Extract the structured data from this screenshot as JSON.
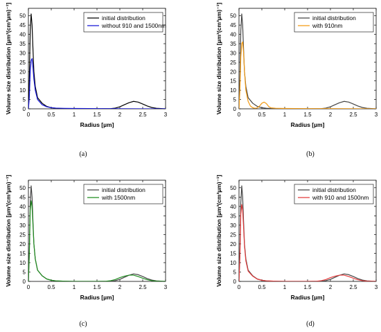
{
  "chart_data": [
    {
      "type": "line",
      "caption": "(a)",
      "xlabel": "Radius [µm]",
      "ylabel": "Volume size distribution [µm³(cm³µm)⁻¹]",
      "xlim": [
        0,
        3
      ],
      "ylim": [
        0,
        54
      ],
      "xticks": [
        "0",
        "0.5",
        "1",
        "1.5",
        "2",
        "2.5",
        "3"
      ],
      "yticks": [
        "0",
        "5",
        "10",
        "15",
        "20",
        "25",
        "30",
        "35",
        "40",
        "45",
        "50"
      ],
      "legend_position": "top-right",
      "grid": false,
      "series": [
        {
          "name": "initial distribution",
          "color": "#000000",
          "x": [
            0,
            0.02,
            0.04,
            0.06,
            0.08,
            0.1,
            0.12,
            0.15,
            0.2,
            0.3,
            0.4,
            0.5,
            0.6,
            0.7,
            0.8,
            1.0,
            1.5,
            1.8,
            1.9,
            2.0,
            2.1,
            2.2,
            2.3,
            2.4,
            2.5,
            2.6,
            2.7,
            2.8,
            3.0
          ],
          "y": [
            0,
            16,
            42,
            51,
            45,
            32,
            20,
            12,
            6,
            3,
            1.3,
            0.6,
            0.3,
            0.2,
            0.1,
            0,
            0,
            0.1,
            0.4,
            1.1,
            2.2,
            3.3,
            4.0,
            3.6,
            2.6,
            1.5,
            0.7,
            0.3,
            0
          ]
        },
        {
          "name": "without 910 and 1500nm",
          "color": "#1515d8",
          "x": [
            0,
            0.02,
            0.04,
            0.06,
            0.08,
            0.1,
            0.12,
            0.15,
            0.2,
            0.3,
            0.4,
            0.5,
            0.6,
            0.7,
            0.8,
            1.0,
            1.5,
            2.0,
            2.5,
            3.0
          ],
          "y": [
            0,
            6,
            20,
            26,
            27,
            22,
            16,
            10,
            5,
            2.2,
            1.1,
            0.6,
            0.4,
            0.3,
            0.25,
            0.2,
            0.1,
            0.05,
            0.02,
            0
          ]
        }
      ]
    },
    {
      "type": "line",
      "caption": "(b)",
      "xlabel": "Radius [µm]",
      "ylabel": "Volume size distribution [µm³(cm³µm)⁻¹]",
      "xlim": [
        0,
        3
      ],
      "ylim": [
        0,
        54
      ],
      "xticks": [
        "0",
        "0.5",
        "1",
        "1.5",
        "2",
        "2.5",
        "3"
      ],
      "yticks": [
        "0",
        "5",
        "10",
        "15",
        "20",
        "25",
        "30",
        "35",
        "40",
        "45",
        "50"
      ],
      "legend_position": "top-right",
      "grid": false,
      "series": [
        {
          "name": "initial distribution",
          "color": "#444444",
          "x": [
            0,
            0.02,
            0.04,
            0.06,
            0.08,
            0.1,
            0.12,
            0.15,
            0.2,
            0.3,
            0.4,
            0.5,
            0.6,
            0.7,
            0.8,
            1.0,
            1.5,
            1.8,
            1.9,
            2.0,
            2.1,
            2.2,
            2.3,
            2.4,
            2.5,
            2.6,
            2.7,
            2.8,
            3.0
          ],
          "y": [
            0,
            16,
            42,
            51,
            45,
            32,
            20,
            12,
            6,
            3,
            1.3,
            0.6,
            0.3,
            0.2,
            0.1,
            0,
            0,
            0.1,
            0.4,
            1.1,
            2.2,
            3.3,
            4.0,
            3.6,
            2.6,
            1.5,
            0.7,
            0.3,
            0
          ]
        },
        {
          "name": "with 910nm",
          "color": "#f39a12",
          "x": [
            0,
            0.02,
            0.04,
            0.06,
            0.08,
            0.1,
            0.12,
            0.15,
            0.2,
            0.25,
            0.3,
            0.35,
            0.4,
            0.45,
            0.5,
            0.55,
            0.6,
            0.65,
            0.7,
            0.8,
            1.0,
            1.5,
            2.0,
            2.5,
            3.0
          ],
          "y": [
            0,
            10,
            28,
            35,
            36,
            30,
            20,
            10,
            4,
            1.5,
            0.6,
            0.3,
            0.5,
            1.5,
            3.0,
            3.6,
            2.8,
            1.2,
            0.5,
            0.3,
            0.2,
            0.1,
            0.1,
            0.05,
            0
          ]
        }
      ]
    },
    {
      "type": "line",
      "caption": "(c)",
      "xlabel": "Radius [µm]",
      "ylabel": "Volume size distribution [µm³(cm³µm)⁻¹]",
      "xlim": [
        0,
        3
      ],
      "ylim": [
        0,
        54
      ],
      "xticks": [
        "0",
        "0.5",
        "1",
        "1.5",
        "2",
        "2.5",
        "3"
      ],
      "yticks": [
        "0",
        "5",
        "10",
        "15",
        "20",
        "25",
        "30",
        "35",
        "40",
        "45",
        "50"
      ],
      "legend_position": "top-right",
      "grid": false,
      "series": [
        {
          "name": "initial distribution",
          "color": "#444444",
          "x": [
            0,
            0.02,
            0.04,
            0.06,
            0.08,
            0.1,
            0.12,
            0.15,
            0.2,
            0.3,
            0.4,
            0.5,
            0.6,
            0.7,
            0.8,
            1.0,
            1.5,
            1.8,
            1.9,
            2.0,
            2.1,
            2.2,
            2.3,
            2.4,
            2.5,
            2.6,
            2.7,
            2.8,
            3.0
          ],
          "y": [
            0,
            16,
            42,
            51,
            45,
            32,
            20,
            12,
            6,
            3,
            1.3,
            0.6,
            0.3,
            0.2,
            0.1,
            0,
            0,
            0.1,
            0.4,
            1.1,
            2.2,
            3.3,
            4.0,
            3.6,
            2.6,
            1.5,
            0.7,
            0.3,
            0
          ]
        },
        {
          "name": "with 1500nm",
          "color": "#1e8c1e",
          "x": [
            0,
            0.02,
            0.04,
            0.06,
            0.08,
            0.1,
            0.12,
            0.15,
            0.2,
            0.3,
            0.4,
            0.5,
            0.6,
            0.7,
            0.8,
            1.0,
            1.5,
            1.7,
            1.8,
            1.9,
            2.0,
            2.1,
            2.2,
            2.25,
            2.3,
            2.4,
            2.5,
            2.6,
            2.7,
            2.8,
            3.0
          ],
          "y": [
            0,
            14,
            38,
            43,
            40,
            30,
            20,
            12,
            6,
            3,
            1.3,
            0.6,
            0.3,
            0.2,
            0.1,
            0,
            0,
            0.1,
            0.4,
            1.0,
            2.0,
            2.8,
            3.3,
            3.4,
            3.3,
            2.6,
            1.7,
            0.9,
            0.4,
            0.15,
            0
          ]
        }
      ]
    },
    {
      "type": "line",
      "caption": "(d)",
      "xlabel": "Radius [µm]",
      "ylabel": "Volume size distribution [µm³(cm³µm)⁻¹]",
      "xlim": [
        0,
        3
      ],
      "ylim": [
        0,
        54
      ],
      "xticks": [
        "0",
        "0.5",
        "1",
        "1.5",
        "2",
        "2.5",
        "3"
      ],
      "yticks": [
        "0",
        "5",
        "10",
        "15",
        "20",
        "25",
        "30",
        "35",
        "40",
        "45",
        "50"
      ],
      "legend_position": "top-right",
      "grid": false,
      "series": [
        {
          "name": "initial distribution",
          "color": "#444444",
          "x": [
            0,
            0.02,
            0.04,
            0.06,
            0.08,
            0.1,
            0.12,
            0.15,
            0.2,
            0.3,
            0.4,
            0.5,
            0.6,
            0.7,
            0.8,
            1.0,
            1.5,
            1.8,
            1.9,
            2.0,
            2.1,
            2.2,
            2.3,
            2.4,
            2.5,
            2.6,
            2.7,
            2.8,
            3.0
          ],
          "y": [
            0,
            16,
            42,
            51,
            45,
            32,
            20,
            12,
            6,
            3,
            1.3,
            0.6,
            0.3,
            0.2,
            0.1,
            0,
            0,
            0.1,
            0.4,
            1.1,
            2.2,
            3.3,
            4.0,
            3.6,
            2.6,
            1.5,
            0.7,
            0.3,
            0
          ]
        },
        {
          "name": "with 910 and 1500nm",
          "color": "#e33a3a",
          "x": [
            0,
            0.02,
            0.04,
            0.06,
            0.08,
            0.1,
            0.12,
            0.15,
            0.2,
            0.3,
            0.4,
            0.5,
            0.6,
            0.7,
            0.8,
            1.0,
            1.5,
            1.7,
            1.8,
            1.9,
            2.0,
            2.1,
            2.2,
            2.25,
            2.3,
            2.4,
            2.5,
            2.6,
            2.7,
            2.8,
            3.0
          ],
          "y": [
            0,
            13,
            36,
            41,
            38,
            29,
            19,
            11,
            5.5,
            2.8,
            1.2,
            0.6,
            0.3,
            0.2,
            0.1,
            0,
            0,
            0.1,
            0.4,
            1.0,
            2.0,
            2.8,
            3.3,
            3.4,
            3.3,
            2.6,
            1.7,
            0.9,
            0.4,
            0.15,
            0
          ]
        }
      ]
    }
  ]
}
